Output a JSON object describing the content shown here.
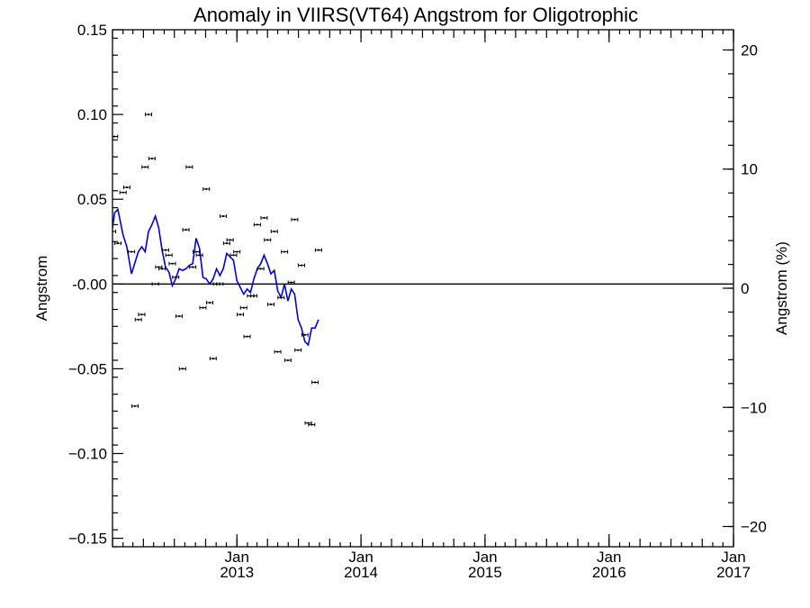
{
  "chart_data": {
    "type": "scatter",
    "title": "Anomaly in VIIRS(VT64) Angstrom for Oligotrophic",
    "ylabel": "Angstrom",
    "y2label": "Angstrom (%)",
    "ylim": [
      -0.155,
      0.15
    ],
    "y2lim": [
      -21.7,
      21.7
    ],
    "xlim": [
      "2012-01-01",
      "2017-01-01"
    ],
    "yticks": [
      {
        "value": 0.15,
        "label": "0.15"
      },
      {
        "value": 0.1,
        "label": "0.10"
      },
      {
        "value": 0.05,
        "label": "0.05"
      },
      {
        "value": 0.0,
        "label": "-0.00"
      },
      {
        "value": -0.05,
        "label": "−0.05"
      },
      {
        "value": -0.1,
        "label": "−0.10"
      },
      {
        "value": -0.15,
        "label": "−0.15"
      }
    ],
    "y2ticks": [
      {
        "value": 20,
        "label": "20"
      },
      {
        "value": 10,
        "label": "10"
      },
      {
        "value": 0,
        "label": "0"
      },
      {
        "value": -10,
        "label": "−10"
      },
      {
        "value": -20,
        "label": "−20"
      }
    ],
    "xticks": [
      {
        "value": "2013-01-01",
        "month": "Jan",
        "year": "2013"
      },
      {
        "value": "2014-01-01",
        "month": "Jan",
        "year": "2014"
      },
      {
        "value": "2015-01-01",
        "month": "Jan",
        "year": "2015"
      },
      {
        "value": "2016-01-01",
        "month": "Jan",
        "year": "2016"
      },
      {
        "value": "2017-01-01",
        "month": "Jan",
        "year": "2017"
      }
    ],
    "reference_line": 0,
    "series": [
      {
        "style": "points-with-error-bars",
        "color": "#000000",
        "points": [
          {
            "x": "2012-01-01",
            "y": 0.031
          },
          {
            "x": "2012-01-07",
            "y": 0.087
          },
          {
            "x": "2012-01-17",
            "y": 0.024
          },
          {
            "x": "2012-02-01",
            "y": 0.054
          },
          {
            "x": "2012-02-12",
            "y": 0.057
          },
          {
            "x": "2012-02-26",
            "y": 0.019
          },
          {
            "x": "2012-03-07",
            "y": -0.072
          },
          {
            "x": "2012-03-17",
            "y": -0.021
          },
          {
            "x": "2012-03-27",
            "y": -0.018
          },
          {
            "x": "2012-04-06",
            "y": 0.069
          },
          {
            "x": "2012-04-16",
            "y": 0.1
          },
          {
            "x": "2012-04-26",
            "y": 0.074
          },
          {
            "x": "2012-05-06",
            "y": 0.0
          },
          {
            "x": "2012-05-16",
            "y": 0.01
          },
          {
            "x": "2012-05-26",
            "y": 0.009
          },
          {
            "x": "2012-06-05",
            "y": 0.02
          },
          {
            "x": "2012-06-15",
            "y": 0.017
          },
          {
            "x": "2012-06-25",
            "y": 0.012
          },
          {
            "x": "2012-07-05",
            "y": 0.004
          },
          {
            "x": "2012-07-15",
            "y": -0.019
          },
          {
            "x": "2012-07-25",
            "y": -0.05
          },
          {
            "x": "2012-08-04",
            "y": 0.032
          },
          {
            "x": "2012-08-14",
            "y": 0.069
          },
          {
            "x": "2012-08-24",
            "y": 0.01
          },
          {
            "x": "2012-09-03",
            "y": 0.019
          },
          {
            "x": "2012-09-13",
            "y": 0.017
          },
          {
            "x": "2012-09-23",
            "y": -0.014
          },
          {
            "x": "2012-10-03",
            "y": 0.056
          },
          {
            "x": "2012-10-13",
            "y": -0.011
          },
          {
            "x": "2012-10-23",
            "y": -0.044
          },
          {
            "x": "2012-11-02",
            "y": 0.0
          },
          {
            "x": "2012-11-12",
            "y": 0.0
          },
          {
            "x": "2012-11-22",
            "y": 0.04
          },
          {
            "x": "2012-12-02",
            "y": 0.024
          },
          {
            "x": "2012-12-12",
            "y": 0.026
          },
          {
            "x": "2012-12-22",
            "y": 0.017
          },
          {
            "x": "2013-01-01",
            "y": 0.019
          },
          {
            "x": "2013-01-11",
            "y": -0.018
          },
          {
            "x": "2013-01-21",
            "y": -0.014
          },
          {
            "x": "2013-01-31",
            "y": -0.031
          },
          {
            "x": "2013-02-10",
            "y": -0.007
          },
          {
            "x": "2013-02-20",
            "y": -0.007
          },
          {
            "x": "2013-03-02",
            "y": 0.035
          },
          {
            "x": "2013-03-12",
            "y": 0.009
          },
          {
            "x": "2013-03-22",
            "y": 0.039
          },
          {
            "x": "2013-04-01",
            "y": 0.026
          },
          {
            "x": "2013-04-11",
            "y": -0.012
          },
          {
            "x": "2013-04-21",
            "y": 0.031
          },
          {
            "x": "2013-05-01",
            "y": -0.04
          },
          {
            "x": "2013-05-11",
            "y": -0.008
          },
          {
            "x": "2013-05-21",
            "y": 0.019
          },
          {
            "x": "2013-05-31",
            "y": -0.045
          },
          {
            "x": "2013-06-10",
            "y": 0.001
          },
          {
            "x": "2013-06-20",
            "y": 0.038
          },
          {
            "x": "2013-06-30",
            "y": -0.039
          },
          {
            "x": "2013-07-10",
            "y": 0.011
          },
          {
            "x": "2013-07-20",
            "y": -0.03
          },
          {
            "x": "2013-07-30",
            "y": -0.082
          },
          {
            "x": "2013-08-09",
            "y": -0.083
          },
          {
            "x": "2013-08-19",
            "y": -0.058
          },
          {
            "x": "2013-08-29",
            "y": 0.02
          }
        ]
      },
      {
        "style": "line",
        "color": "#0000dd",
        "points": [
          {
            "x": "2012-01-01",
            "y": 0.033
          },
          {
            "x": "2012-01-07",
            "y": 0.042
          },
          {
            "x": "2012-01-17",
            "y": 0.044
          },
          {
            "x": "2012-02-01",
            "y": 0.029
          },
          {
            "x": "2012-02-12",
            "y": 0.022
          },
          {
            "x": "2012-02-26",
            "y": 0.006
          },
          {
            "x": "2012-03-17",
            "y": 0.019
          },
          {
            "x": "2012-03-27",
            "y": 0.022
          },
          {
            "x": "2012-04-06",
            "y": 0.019
          },
          {
            "x": "2012-04-16",
            "y": 0.031
          },
          {
            "x": "2012-04-26",
            "y": 0.035
          },
          {
            "x": "2012-05-06",
            "y": 0.04
          },
          {
            "x": "2012-05-16",
            "y": 0.033
          },
          {
            "x": "2012-05-26",
            "y": 0.02
          },
          {
            "x": "2012-06-05",
            "y": 0.01
          },
          {
            "x": "2012-06-15",
            "y": 0.007
          },
          {
            "x": "2012-06-25",
            "y": -0.001
          },
          {
            "x": "2012-07-05",
            "y": 0.003
          },
          {
            "x": "2012-07-15",
            "y": 0.009
          },
          {
            "x": "2012-07-25",
            "y": 0.008
          },
          {
            "x": "2012-08-04",
            "y": 0.009
          },
          {
            "x": "2012-08-14",
            "y": 0.011
          },
          {
            "x": "2012-08-24",
            "y": 0.012
          },
          {
            "x": "2012-09-03",
            "y": 0.027
          },
          {
            "x": "2012-09-13",
            "y": 0.021
          },
          {
            "x": "2012-09-23",
            "y": 0.004
          },
          {
            "x": "2012-10-03",
            "y": 0.003
          },
          {
            "x": "2012-10-13",
            "y": 0.0
          },
          {
            "x": "2012-10-23",
            "y": 0.003
          },
          {
            "x": "2012-11-02",
            "y": 0.009
          },
          {
            "x": "2012-11-12",
            "y": 0.005
          },
          {
            "x": "2012-11-22",
            "y": 0.009
          },
          {
            "x": "2012-12-02",
            "y": 0.018
          },
          {
            "x": "2012-12-12",
            "y": 0.016
          },
          {
            "x": "2012-12-22",
            "y": 0.014
          },
          {
            "x": "2013-01-01",
            "y": 0.002
          },
          {
            "x": "2013-01-11",
            "y": -0.002
          },
          {
            "x": "2013-01-21",
            "y": -0.006
          },
          {
            "x": "2013-01-31",
            "y": -0.003
          },
          {
            "x": "2013-02-10",
            "y": -0.005
          },
          {
            "x": "2013-02-20",
            "y": 0.003
          },
          {
            "x": "2013-03-02",
            "y": 0.009
          },
          {
            "x": "2013-03-12",
            "y": 0.012
          },
          {
            "x": "2013-03-22",
            "y": 0.017
          },
          {
            "x": "2013-04-01",
            "y": 0.012
          },
          {
            "x": "2013-04-11",
            "y": 0.006
          },
          {
            "x": "2013-04-21",
            "y": 0.008
          },
          {
            "x": "2013-05-01",
            "y": -0.004
          },
          {
            "x": "2013-05-11",
            "y": -0.008
          },
          {
            "x": "2013-05-21",
            "y": 0.0
          },
          {
            "x": "2013-05-31",
            "y": -0.01
          },
          {
            "x": "2013-06-10",
            "y": -0.003
          },
          {
            "x": "2013-06-20",
            "y": -0.006
          },
          {
            "x": "2013-06-30",
            "y": -0.021
          },
          {
            "x": "2013-07-10",
            "y": -0.026
          },
          {
            "x": "2013-07-20",
            "y": -0.034
          },
          {
            "x": "2013-07-30",
            "y": -0.036
          },
          {
            "x": "2013-08-09",
            "y": -0.026
          },
          {
            "x": "2013-08-19",
            "y": -0.026
          },
          {
            "x": "2013-08-29",
            "y": -0.021
          }
        ]
      }
    ]
  }
}
